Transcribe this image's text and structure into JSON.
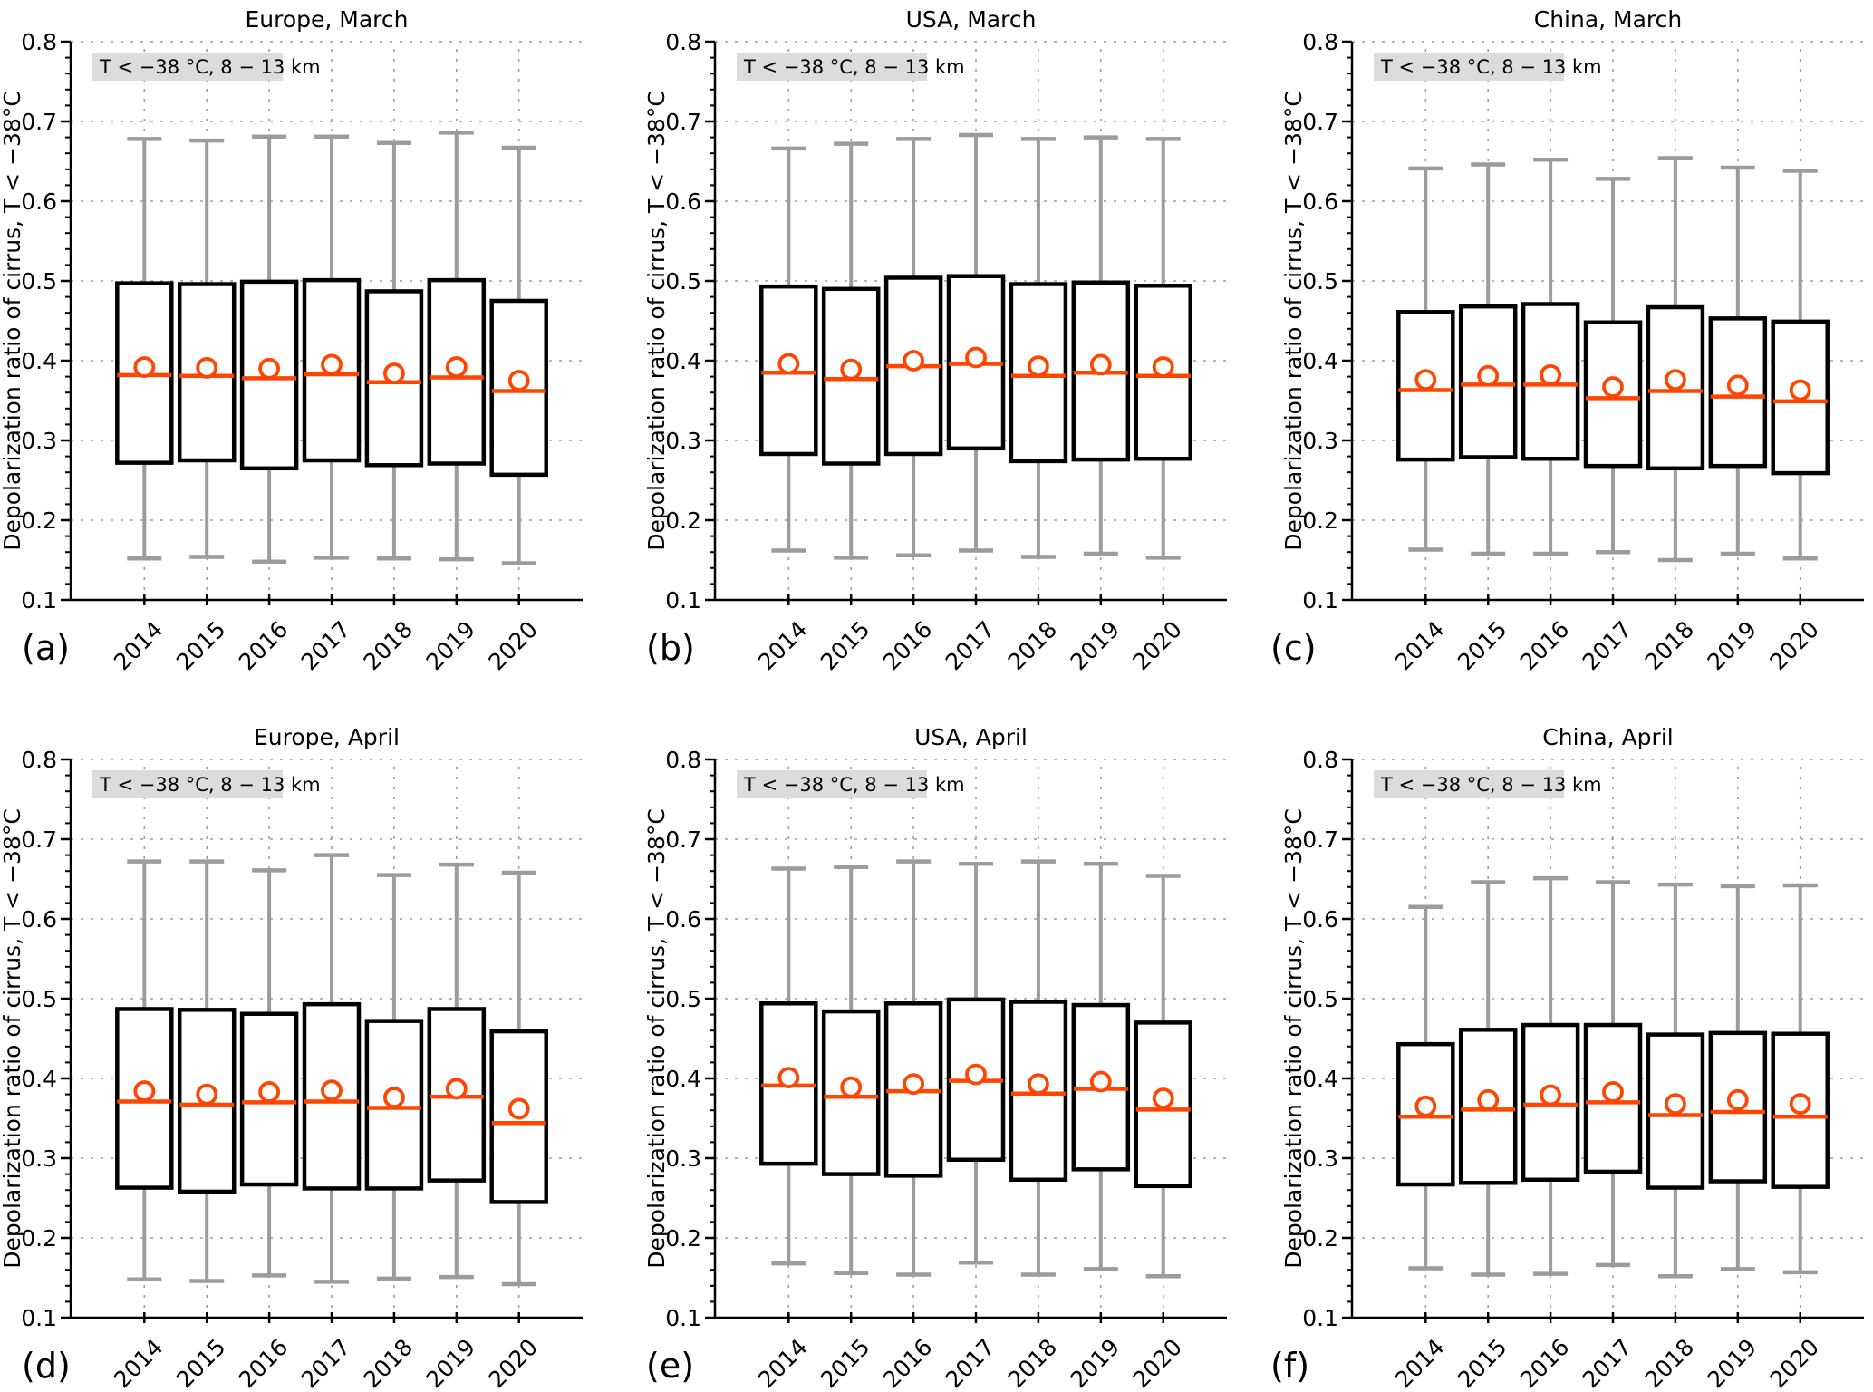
{
  "figure": {
    "ylabel": "Depolarization ratio of cirrus, T < −38°C",
    "annotation": "T < −38 °C, 8 − 13 km",
    "colors": {
      "background": "#ffffff",
      "axis": "#000000",
      "text": "#000000",
      "grid": "#9e9e9e",
      "box_stroke": "#000000",
      "box_fill": "#ffffff",
      "median": "#ff4500",
      "mean_marker": "#ff4500",
      "whisker": "#9c9c9c",
      "annotation_bg": "#dcdcdc"
    }
  },
  "chart_data": [
    {
      "type": "box",
      "panel_letter": "(a)",
      "title": "Europe, March",
      "ylabel": "Depolarization ratio of cirrus, T < −38°C",
      "annotation": "T < −38 °C, 8 − 13 km",
      "categories": [
        "2014",
        "2015",
        "2016",
        "2017",
        "2018",
        "2019",
        "2020"
      ],
      "ylim": [
        0.1,
        0.8
      ],
      "yticks": [
        0.1,
        0.2,
        0.3,
        0.4,
        0.5,
        0.6,
        0.7,
        0.8
      ],
      "grid": true,
      "legend": "none",
      "series": [
        {
          "year": "2014",
          "whisker_low": 0.152,
          "q1": 0.272,
          "median": 0.382,
          "mean": 0.392,
          "q3": 0.497,
          "whisker_high": 0.678
        },
        {
          "year": "2015",
          "whisker_low": 0.154,
          "q1": 0.275,
          "median": 0.381,
          "mean": 0.391,
          "q3": 0.496,
          "whisker_high": 0.676
        },
        {
          "year": "2016",
          "whisker_low": 0.148,
          "q1": 0.265,
          "median": 0.378,
          "mean": 0.39,
          "q3": 0.499,
          "whisker_high": 0.681
        },
        {
          "year": "2017",
          "whisker_low": 0.153,
          "q1": 0.275,
          "median": 0.383,
          "mean": 0.395,
          "q3": 0.501,
          "whisker_high": 0.681
        },
        {
          "year": "2018",
          "whisker_low": 0.152,
          "q1": 0.269,
          "median": 0.373,
          "mean": 0.384,
          "q3": 0.487,
          "whisker_high": 0.673
        },
        {
          "year": "2019",
          "whisker_low": 0.151,
          "q1": 0.271,
          "median": 0.379,
          "mean": 0.392,
          "q3": 0.501,
          "whisker_high": 0.686
        },
        {
          "year": "2020",
          "whisker_low": 0.146,
          "q1": 0.257,
          "median": 0.362,
          "mean": 0.375,
          "q3": 0.475,
          "whisker_high": 0.667
        }
      ]
    },
    {
      "type": "box",
      "panel_letter": "(b)",
      "title": "USA, March",
      "ylabel": "Depolarization ratio of cirrus, T < −38°C",
      "annotation": "T < −38 °C, 8 − 13 km",
      "categories": [
        "2014",
        "2015",
        "2016",
        "2017",
        "2018",
        "2019",
        "2020"
      ],
      "ylim": [
        0.1,
        0.8
      ],
      "yticks": [
        0.1,
        0.2,
        0.3,
        0.4,
        0.5,
        0.6,
        0.7,
        0.8
      ],
      "grid": true,
      "legend": "none",
      "series": [
        {
          "year": "2014",
          "whisker_low": 0.162,
          "q1": 0.283,
          "median": 0.385,
          "mean": 0.396,
          "q3": 0.493,
          "whisker_high": 0.666
        },
        {
          "year": "2015",
          "whisker_low": 0.153,
          "q1": 0.271,
          "median": 0.377,
          "mean": 0.389,
          "q3": 0.49,
          "whisker_high": 0.672
        },
        {
          "year": "2016",
          "whisker_low": 0.156,
          "q1": 0.283,
          "median": 0.393,
          "mean": 0.4,
          "q3": 0.504,
          "whisker_high": 0.678
        },
        {
          "year": "2017",
          "whisker_low": 0.162,
          "q1": 0.29,
          "median": 0.396,
          "mean": 0.404,
          "q3": 0.506,
          "whisker_high": 0.683
        },
        {
          "year": "2018",
          "whisker_low": 0.154,
          "q1": 0.274,
          "median": 0.381,
          "mean": 0.393,
          "q3": 0.496,
          "whisker_high": 0.678
        },
        {
          "year": "2019",
          "whisker_low": 0.158,
          "q1": 0.276,
          "median": 0.385,
          "mean": 0.395,
          "q3": 0.498,
          "whisker_high": 0.68
        },
        {
          "year": "2020",
          "whisker_low": 0.153,
          "q1": 0.277,
          "median": 0.381,
          "mean": 0.392,
          "q3": 0.494,
          "whisker_high": 0.678
        }
      ]
    },
    {
      "type": "box",
      "panel_letter": "(c)",
      "title": "China, March",
      "ylabel": "Depolarization ratio of cirrus, T < −38°C",
      "annotation": "T < −38 °C, 8 − 13 km",
      "categories": [
        "2014",
        "2015",
        "2016",
        "2017",
        "2018",
        "2019",
        "2020"
      ],
      "ylim": [
        0.1,
        0.8
      ],
      "yticks": [
        0.1,
        0.2,
        0.3,
        0.4,
        0.5,
        0.6,
        0.7,
        0.8
      ],
      "grid": true,
      "legend": "none",
      "series": [
        {
          "year": "2014",
          "whisker_low": 0.163,
          "q1": 0.276,
          "median": 0.363,
          "mean": 0.376,
          "q3": 0.461,
          "whisker_high": 0.641
        },
        {
          "year": "2015",
          "whisker_low": 0.158,
          "q1": 0.279,
          "median": 0.37,
          "mean": 0.381,
          "q3": 0.468,
          "whisker_high": 0.646
        },
        {
          "year": "2016",
          "whisker_low": 0.158,
          "q1": 0.277,
          "median": 0.37,
          "mean": 0.382,
          "q3": 0.471,
          "whisker_high": 0.652
        },
        {
          "year": "2017",
          "whisker_low": 0.16,
          "q1": 0.268,
          "median": 0.353,
          "mean": 0.367,
          "q3": 0.448,
          "whisker_high": 0.628
        },
        {
          "year": "2018",
          "whisker_low": 0.15,
          "q1": 0.265,
          "median": 0.362,
          "mean": 0.376,
          "q3": 0.467,
          "whisker_high": 0.654
        },
        {
          "year": "2019",
          "whisker_low": 0.158,
          "q1": 0.268,
          "median": 0.355,
          "mean": 0.369,
          "q3": 0.453,
          "whisker_high": 0.642
        },
        {
          "year": "2020",
          "whisker_low": 0.152,
          "q1": 0.259,
          "median": 0.349,
          "mean": 0.363,
          "q3": 0.449,
          "whisker_high": 0.638
        }
      ]
    },
    {
      "type": "box",
      "panel_letter": "(d)",
      "title": "Europe, April",
      "ylabel": "Depolarization ratio of cirrus, T < −38°C",
      "annotation": "T < −38 °C, 8 − 13 km",
      "categories": [
        "2014",
        "2015",
        "2016",
        "2017",
        "2018",
        "2019",
        "2020"
      ],
      "ylim": [
        0.1,
        0.8
      ],
      "yticks": [
        0.1,
        0.2,
        0.3,
        0.4,
        0.5,
        0.6,
        0.7,
        0.8
      ],
      "grid": true,
      "legend": "none",
      "series": [
        {
          "year": "2014",
          "whisker_low": 0.148,
          "q1": 0.263,
          "median": 0.371,
          "mean": 0.384,
          "q3": 0.487,
          "whisker_high": 0.672
        },
        {
          "year": "2015",
          "whisker_low": 0.146,
          "q1": 0.258,
          "median": 0.367,
          "mean": 0.38,
          "q3": 0.486,
          "whisker_high": 0.672
        },
        {
          "year": "2016",
          "whisker_low": 0.153,
          "q1": 0.267,
          "median": 0.37,
          "mean": 0.383,
          "q3": 0.481,
          "whisker_high": 0.661
        },
        {
          "year": "2017",
          "whisker_low": 0.145,
          "q1": 0.262,
          "median": 0.371,
          "mean": 0.385,
          "q3": 0.493,
          "whisker_high": 0.68
        },
        {
          "year": "2018",
          "whisker_low": 0.149,
          "q1": 0.262,
          "median": 0.363,
          "mean": 0.376,
          "q3": 0.472,
          "whisker_high": 0.655
        },
        {
          "year": "2019",
          "whisker_low": 0.151,
          "q1": 0.272,
          "median": 0.377,
          "mean": 0.387,
          "q3": 0.487,
          "whisker_high": 0.668
        },
        {
          "year": "2020",
          "whisker_low": 0.142,
          "q1": 0.245,
          "median": 0.344,
          "mean": 0.362,
          "q3": 0.459,
          "whisker_high": 0.658
        }
      ]
    },
    {
      "type": "box",
      "panel_letter": "(e)",
      "title": "USA, April",
      "ylabel": "Depolarization ratio of cirrus, T < −38°C",
      "annotation": "T < −38 °C, 8 − 13 km",
      "categories": [
        "2014",
        "2015",
        "2016",
        "2017",
        "2018",
        "2019",
        "2020"
      ],
      "ylim": [
        0.1,
        0.8
      ],
      "yticks": [
        0.1,
        0.2,
        0.3,
        0.4,
        0.5,
        0.6,
        0.7,
        0.8
      ],
      "grid": true,
      "legend": "none",
      "series": [
        {
          "year": "2014",
          "whisker_low": 0.168,
          "q1": 0.293,
          "median": 0.391,
          "mean": 0.401,
          "q3": 0.494,
          "whisker_high": 0.663
        },
        {
          "year": "2015",
          "whisker_low": 0.156,
          "q1": 0.28,
          "median": 0.377,
          "mean": 0.389,
          "q3": 0.484,
          "whisker_high": 0.665
        },
        {
          "year": "2016",
          "whisker_low": 0.154,
          "q1": 0.278,
          "median": 0.384,
          "mean": 0.393,
          "q3": 0.494,
          "whisker_high": 0.672
        },
        {
          "year": "2017",
          "whisker_low": 0.169,
          "q1": 0.298,
          "median": 0.397,
          "mean": 0.405,
          "q3": 0.499,
          "whisker_high": 0.669
        },
        {
          "year": "2018",
          "whisker_low": 0.154,
          "q1": 0.273,
          "median": 0.381,
          "mean": 0.393,
          "q3": 0.496,
          "whisker_high": 0.672
        },
        {
          "year": "2019",
          "whisker_low": 0.161,
          "q1": 0.286,
          "median": 0.387,
          "mean": 0.396,
          "q3": 0.492,
          "whisker_high": 0.669
        },
        {
          "year": "2020",
          "whisker_low": 0.152,
          "q1": 0.265,
          "median": 0.361,
          "mean": 0.375,
          "q3": 0.47,
          "whisker_high": 0.654
        }
      ]
    },
    {
      "type": "box",
      "panel_letter": "(f)",
      "title": "China, April",
      "ylabel": "Depolarization ratio of cirrus, T < −38°C",
      "annotation": "T < −38 °C, 8 − 13 km",
      "categories": [
        "2014",
        "2015",
        "2016",
        "2017",
        "2018",
        "2019",
        "2020"
      ],
      "ylim": [
        0.1,
        0.8
      ],
      "yticks": [
        0.1,
        0.2,
        0.3,
        0.4,
        0.5,
        0.6,
        0.7,
        0.8
      ],
      "grid": true,
      "legend": "none",
      "series": [
        {
          "year": "2014",
          "whisker_low": 0.162,
          "q1": 0.267,
          "median": 0.352,
          "mean": 0.365,
          "q3": 0.443,
          "whisker_high": 0.615
        },
        {
          "year": "2015",
          "whisker_low": 0.154,
          "q1": 0.269,
          "median": 0.361,
          "mean": 0.373,
          "q3": 0.461,
          "whisker_high": 0.646
        },
        {
          "year": "2016",
          "whisker_low": 0.155,
          "q1": 0.273,
          "median": 0.367,
          "mean": 0.379,
          "q3": 0.467,
          "whisker_high": 0.651
        },
        {
          "year": "2017",
          "whisker_low": 0.166,
          "q1": 0.283,
          "median": 0.37,
          "mean": 0.383,
          "q3": 0.467,
          "whisker_high": 0.646
        },
        {
          "year": "2018",
          "whisker_low": 0.152,
          "q1": 0.263,
          "median": 0.354,
          "mean": 0.368,
          "q3": 0.455,
          "whisker_high": 0.643
        },
        {
          "year": "2019",
          "whisker_low": 0.161,
          "q1": 0.271,
          "median": 0.358,
          "mean": 0.373,
          "q3": 0.457,
          "whisker_high": 0.641
        },
        {
          "year": "2020",
          "whisker_low": 0.157,
          "q1": 0.264,
          "median": 0.352,
          "mean": 0.368,
          "q3": 0.456,
          "whisker_high": 0.642
        }
      ]
    }
  ]
}
